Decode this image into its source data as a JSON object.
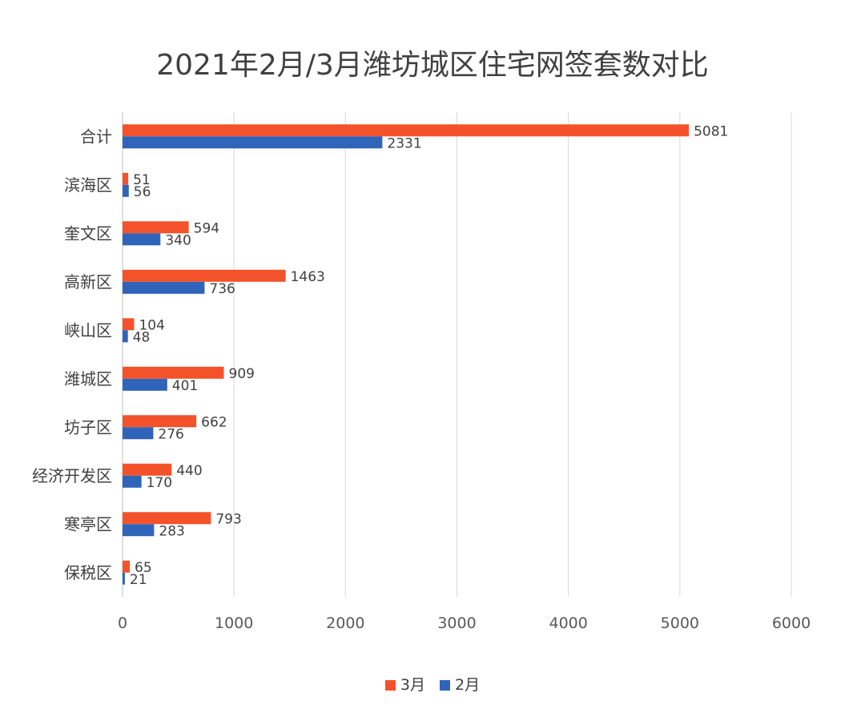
{
  "chart_data": {
    "type": "bar",
    "orientation": "horizontal",
    "title": "2021年2月/3月潍坊城区住宅网签套数对比",
    "categories": [
      "合计",
      "滨海区",
      "奎文区",
      "高新区",
      "峡山区",
      "潍城区",
      "坊子区",
      "经济开发区",
      "寒亭区",
      "保税区"
    ],
    "series": [
      {
        "name": "3月",
        "color": "#f4522a",
        "values": [
          5081,
          51,
          594,
          1463,
          104,
          909,
          662,
          440,
          793,
          65
        ]
      },
      {
        "name": "2月",
        "color": "#2f64b9",
        "values": [
          2331,
          56,
          340,
          736,
          48,
          401,
          276,
          170,
          283,
          21
        ]
      }
    ],
    "xlim": [
      0,
      6000
    ],
    "xticks": [
      0,
      1000,
      2000,
      3000,
      4000,
      5000,
      6000
    ],
    "xlabel": "",
    "ylabel": "",
    "grid": "vertical",
    "legend_position": "bottom"
  }
}
